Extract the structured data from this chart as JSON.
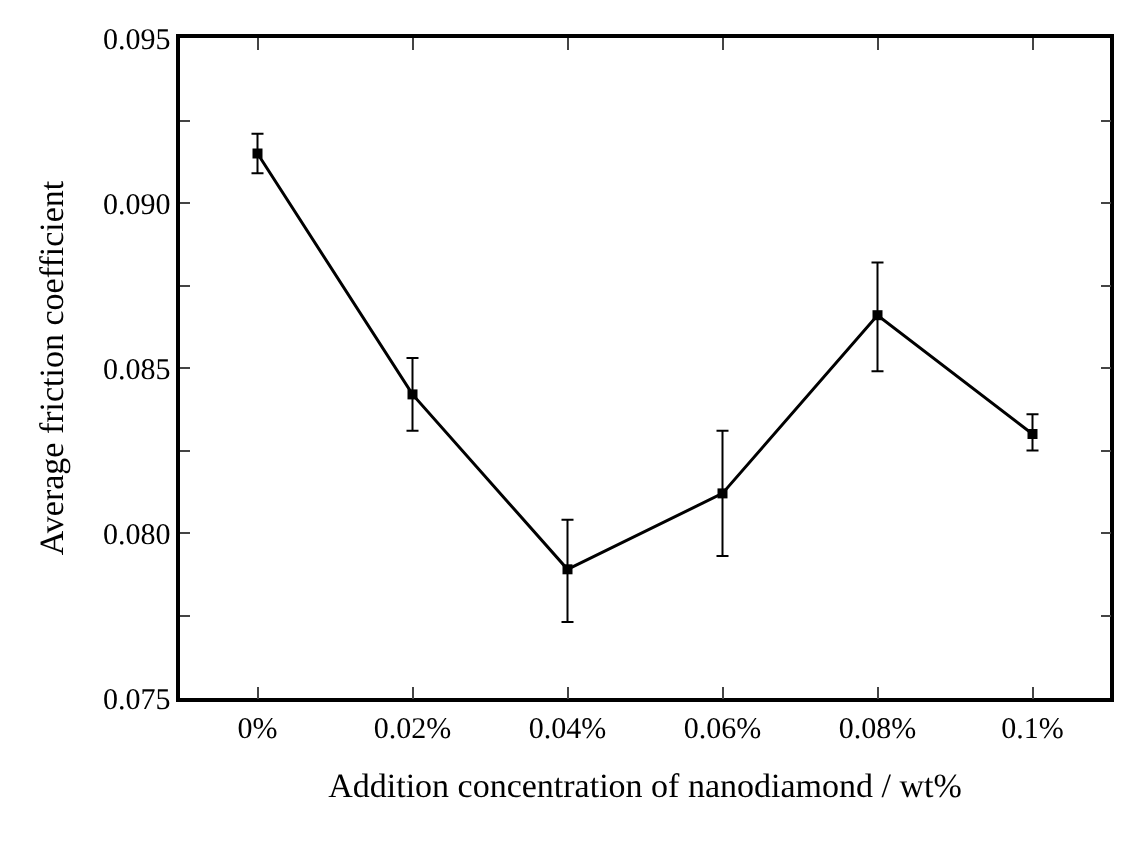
{
  "chart_data": {
    "type": "line",
    "xlabel": "Addition concentration of nanodiamond / wt%",
    "ylabel": "Average friction coefficient",
    "categories": [
      "0%",
      "0.02%",
      "0.04%",
      "0.06%",
      "0.08%",
      "0.1%"
    ],
    "series": [
      {
        "color": "#000000",
        "values": [
          0.0915,
          0.0842,
          0.0789,
          0.0812,
          0.0866,
          0.083
        ],
        "errors": [
          [
            0.0909,
            0.0921
          ],
          [
            0.0831,
            0.0853
          ],
          [
            0.0773,
            0.0804
          ],
          [
            0.0793,
            0.0831
          ],
          [
            0.0849,
            0.0882
          ],
          [
            0.0825,
            0.0836
          ]
        ]
      }
    ],
    "ylim": [
      0.075,
      0.095
    ],
    "yticks": [
      0.075,
      {
        "value": 0.0775,
        "label": null
      },
      {
        "value": 0.08,
        "label": "0.080"
      },
      {
        "value": 0.0825,
        "label": null
      },
      0.085,
      {
        "value": 0.0875,
        "label": null
      },
      {
        "value": 0.09,
        "label": "0.090"
      },
      {
        "value": 0.0925,
        "label": null
      },
      0.095
    ],
    "marker": "square",
    "line_style": "solid",
    "grid": false,
    "legend": false
  }
}
